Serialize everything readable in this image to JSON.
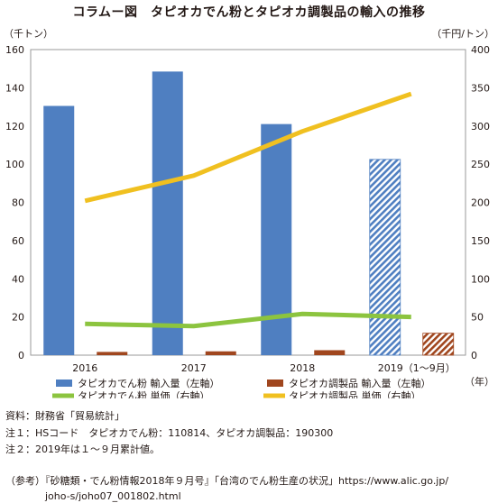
{
  "title": "コラムー図　タピオカでん粉とタピオカ調製品の輸入の推移",
  "chart_data": {
    "type": "bar+line",
    "categories": [
      "2016",
      "2017",
      "2018",
      "2019（1〜9月）"
    ],
    "left_axis": {
      "unit_label": "（千トン）",
      "ylim": [
        0,
        160
      ],
      "ticks": [
        0,
        20,
        40,
        60,
        80,
        100,
        120,
        140,
        160
      ]
    },
    "right_axis": {
      "unit_label": "（千円/トン）",
      "ylim": [
        0,
        400
      ],
      "ticks": [
        0,
        50,
        100,
        150,
        200,
        250,
        300,
        350,
        400
      ]
    },
    "x_unit_label": "（年）",
    "grid": false,
    "bar_series": [
      {
        "name": "タピオカでん粉 輸入量（左軸）",
        "axis": "left",
        "color": "#4f7fc1",
        "values": [
          130.5,
          148.5,
          121.0,
          102.5
        ],
        "hatched_last": true
      },
      {
        "name": "タピオカ調製品 輸入量（左軸）",
        "axis": "left",
        "color": "#a0461e",
        "values": [
          1.7,
          2.0,
          2.6,
          11.5
        ],
        "hatched_last": true
      }
    ],
    "line_series": [
      {
        "name": "タピオカでん粉 単価（右軸）",
        "axis": "right",
        "color": "#8cc43f",
        "values": [
          41,
          38,
          54,
          50
        ]
      },
      {
        "name": "タピオカ調製品 単価（右軸）",
        "axis": "right",
        "color": "#f0c020",
        "values": [
          202,
          235,
          293,
          342
        ]
      }
    ],
    "legend_position": "bottom"
  },
  "notes": [
    "資料：財務省「貿易統計」",
    "注１：HSコード　タピオカでん粉：110814、タピオカ調製品：190300",
    "注２：2019年は１〜９月累計値。"
  ],
  "reference": [
    "（参考）『砂糖類・でん粉情報2018年９月号』「台湾のでん粉生産の状況」https://www.alic.go.jp/",
    "　　　　joho-s/joho07_001802.html"
  ]
}
